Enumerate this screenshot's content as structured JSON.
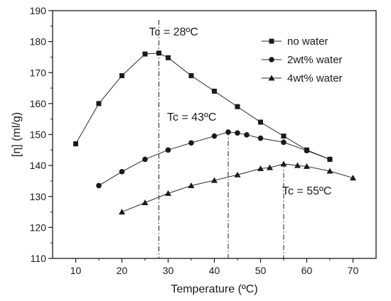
{
  "chart_data": {
    "type": "line",
    "title": "",
    "xlabel": "Temperature (ºC)",
    "ylabel": "[η] (ml/g)",
    "xlim": [
      5,
      75
    ],
    "ylim": [
      110,
      190
    ],
    "x_ticks": [
      10,
      20,
      30,
      40,
      50,
      60,
      70
    ],
    "y_ticks": [
      110,
      120,
      130,
      140,
      150,
      160,
      170,
      180,
      190
    ],
    "legend_position": "top-right",
    "series": [
      {
        "name": "no water",
        "marker": "square",
        "points": [
          [
            10,
            147
          ],
          [
            15,
            160
          ],
          [
            20,
            169
          ],
          [
            25,
            176
          ],
          [
            28,
            176.3
          ],
          [
            30,
            174.8
          ],
          [
            35,
            169
          ],
          [
            40,
            164
          ],
          [
            45,
            159
          ],
          [
            50,
            154
          ],
          [
            55,
            149.5
          ],
          [
            60,
            145
          ],
          [
            65,
            142
          ]
        ]
      },
      {
        "name": "2wt% water",
        "marker": "circle",
        "points": [
          [
            15,
            133.5
          ],
          [
            20,
            138
          ],
          [
            25,
            142
          ],
          [
            30,
            145
          ],
          [
            35,
            147.3
          ],
          [
            40,
            149.5
          ],
          [
            43,
            150.8
          ],
          [
            45,
            150.5
          ],
          [
            47,
            149.9
          ],
          [
            50,
            148.8
          ],
          [
            55,
            147.5
          ],
          [
            60,
            144.8
          ],
          [
            65,
            142
          ]
        ]
      },
      {
        "name": "4wt% water",
        "marker": "triangle",
        "points": [
          [
            20,
            125
          ],
          [
            25,
            128
          ],
          [
            30,
            131
          ],
          [
            35,
            133.5
          ],
          [
            40,
            135.2
          ],
          [
            45,
            137
          ],
          [
            50,
            139
          ],
          [
            52,
            139.3
          ],
          [
            55,
            140.5
          ],
          [
            58,
            140
          ],
          [
            60,
            139.7
          ],
          [
            65,
            138.2
          ],
          [
            70,
            136
          ]
        ]
      }
    ],
    "annotations": [
      {
        "text": "Tc = 28ºC",
        "x": 28
      },
      {
        "text": "Tc = 43ºC",
        "x": 43
      },
      {
        "text": "Tc = 55ºC",
        "x": 55
      }
    ]
  }
}
